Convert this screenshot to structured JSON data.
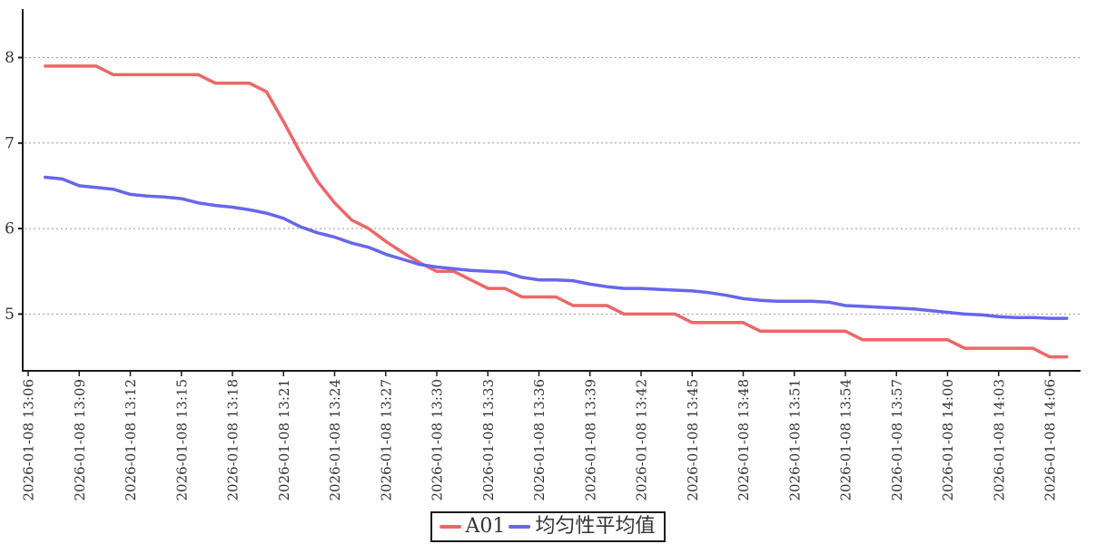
{
  "chart_data": {
    "type": "line",
    "title": "",
    "xlabel": "",
    "ylabel": "",
    "grid": "horizontal-dashed",
    "legend_position": "bottom-center",
    "background_color": "#ffffff",
    "axis_color": "#1a1a1a",
    "grid_color": "#999999",
    "tick_label_color": "#333333",
    "yticks": [
      5,
      6,
      7,
      8
    ],
    "ylim": [
      4.35,
      8.55
    ],
    "x_tick_labels": [
      "2026-01-08 13:06",
      "2026-01-08 13:09",
      "2026-01-08 13:12",
      "2026-01-08 13:15",
      "2026-01-08 13:18",
      "2026-01-08 13:21",
      "2026-01-08 13:24",
      "2026-01-08 13:27",
      "2026-01-08 13:30",
      "2026-01-08 13:33",
      "2026-01-08 13:36",
      "2026-01-08 13:39",
      "2026-01-08 13:42",
      "2026-01-08 13:45",
      "2026-01-08 13:48",
      "2026-01-08 13:51",
      "2026-01-08 13:54",
      "2026-01-08 13:57",
      "2026-01-08 14:00",
      "2026-01-08 14:03",
      "2026-01-08 14:06"
    ],
    "x": [
      "13:07",
      "13:08",
      "13:09",
      "13:10",
      "13:11",
      "13:12",
      "13:13",
      "13:14",
      "13:15",
      "13:16",
      "13:17",
      "13:18",
      "13:19",
      "13:20",
      "13:21",
      "13:22",
      "13:23",
      "13:24",
      "13:25",
      "13:26",
      "13:27",
      "13:28",
      "13:29",
      "13:30",
      "13:31",
      "13:32",
      "13:33",
      "13:34",
      "13:35",
      "13:36",
      "13:37",
      "13:38",
      "13:39",
      "13:40",
      "13:41",
      "13:42",
      "13:43",
      "13:44",
      "13:45",
      "13:46",
      "13:47",
      "13:48",
      "13:49",
      "13:50",
      "13:51",
      "13:52",
      "13:53",
      "13:54",
      "13:55",
      "13:56",
      "13:57",
      "13:58",
      "13:59",
      "14:00",
      "14:01",
      "14:02",
      "14:03",
      "14:04",
      "14:05",
      "14:06",
      "14:07"
    ],
    "series": [
      {
        "name": "A01",
        "color": "#ee6666",
        "values": [
          7.9,
          7.9,
          7.9,
          7.9,
          7.8,
          7.8,
          7.8,
          7.8,
          7.8,
          7.8,
          7.7,
          7.7,
          7.7,
          7.6,
          7.25,
          6.88,
          6.55,
          6.3,
          6.1,
          6.0,
          5.85,
          5.72,
          5.6,
          5.5,
          5.5,
          5.4,
          5.3,
          5.3,
          5.2,
          5.2,
          5.2,
          5.1,
          5.1,
          5.1,
          5.0,
          5.0,
          5.0,
          5.0,
          4.9,
          4.9,
          4.9,
          4.9,
          4.8,
          4.8,
          4.8,
          4.8,
          4.8,
          4.8,
          4.7,
          4.7,
          4.7,
          4.7,
          4.7,
          4.7,
          4.6,
          4.6,
          4.6,
          4.6,
          4.6,
          4.5,
          4.5
        ]
      },
      {
        "name": "均匀性平均值",
        "color": "#6666ee",
        "values": [
          6.6,
          6.58,
          6.5,
          6.48,
          6.46,
          6.4,
          6.38,
          6.37,
          6.35,
          6.3,
          6.27,
          6.25,
          6.22,
          6.18,
          6.12,
          6.02,
          5.95,
          5.9,
          5.83,
          5.78,
          5.7,
          5.64,
          5.58,
          5.55,
          5.53,
          5.51,
          5.5,
          5.49,
          5.43,
          5.4,
          5.4,
          5.39,
          5.35,
          5.32,
          5.3,
          5.3,
          5.29,
          5.28,
          5.27,
          5.25,
          5.22,
          5.18,
          5.16,
          5.15,
          5.15,
          5.15,
          5.14,
          5.1,
          5.09,
          5.08,
          5.07,
          5.06,
          5.04,
          5.02,
          5.0,
          4.99,
          4.97,
          4.96,
          4.96,
          4.95,
          4.95
        ]
      }
    ]
  }
}
